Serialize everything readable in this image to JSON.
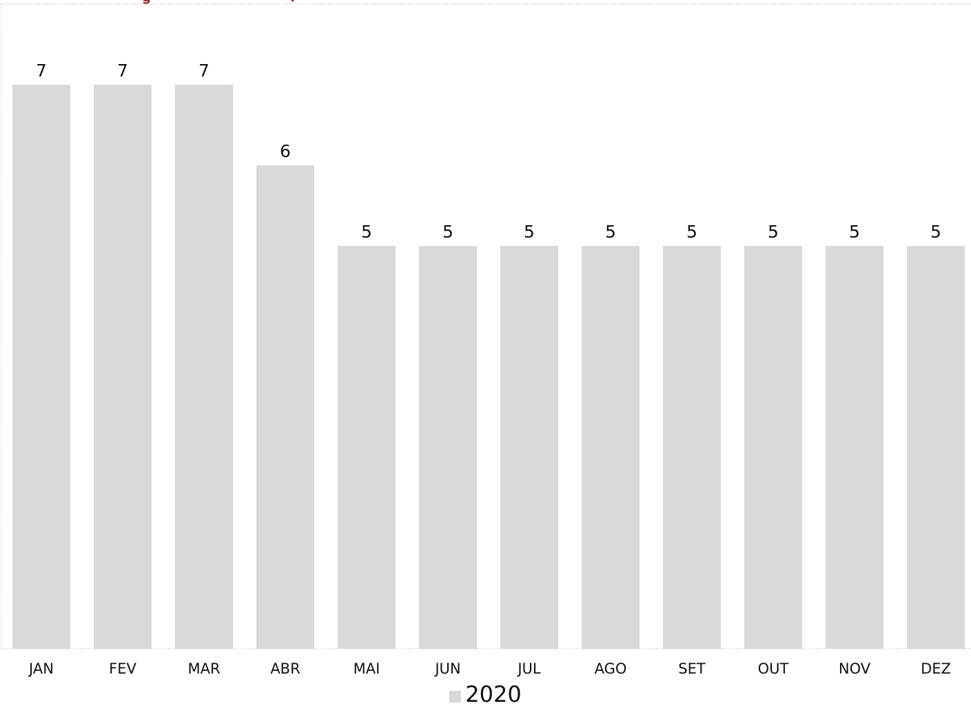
{
  "colors": {
    "bar": "#d9d9d9",
    "accent": "#8b1a1a",
    "text": "#111111",
    "gridline": "#c8c8c8"
  },
  "title_fragment": {
    "left": "g",
    "right": "?"
  },
  "chart_data": {
    "type": "bar",
    "categories": [
      "JAN",
      "FEV",
      "MAR",
      "ABR",
      "MAI",
      "JUN",
      "JUL",
      "AGO",
      "SET",
      "OUT",
      "NOV",
      "DEZ"
    ],
    "series": [
      {
        "name": "2020",
        "values": [
          7,
          7,
          7,
          6,
          5,
          5,
          5,
          5,
          5,
          5,
          5,
          5
        ]
      }
    ],
    "ylim": [
      0,
      7.5
    ],
    "grid": false,
    "legend_position": "bottom-center",
    "data_labels": true
  }
}
